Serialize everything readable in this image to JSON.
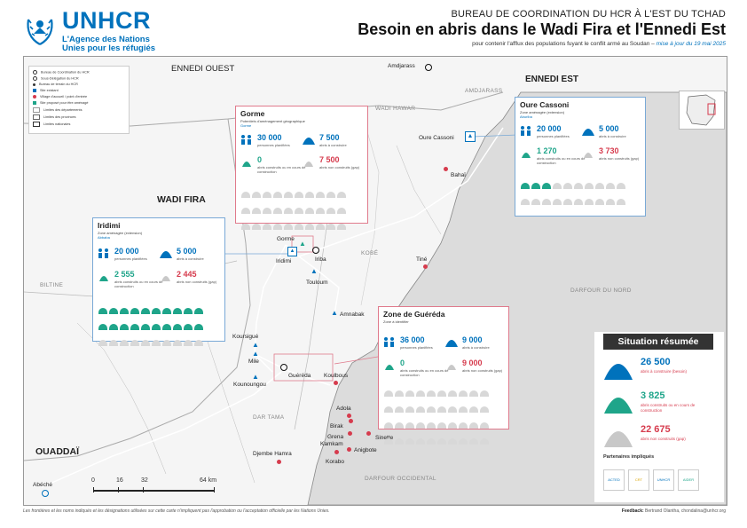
{
  "header": {
    "org_name": "UNHCR",
    "org_sub1": "L'Agence des Nations",
    "org_sub2": "Unies pour les réfugiés",
    "office": "BUREAU DE COORDINATION DU HCR À L'EST DU TCHAD",
    "title": "Besoin en abris dans le Wadi Fira et l'Ennedi Est",
    "subtitle": "pour contenir l'afflux des populations fuyant le conflit armé au Soudan –",
    "update": "mise à jour du 19 mai 2025"
  },
  "legend": {
    "items": [
      "Bureau de Coordination du HCR",
      "Sous-Délégation du HCR",
      "Bureau de terrain du HCR",
      "Site existant",
      "Village d'accueil / point d'entrée",
      "Site proposé pour être aménagé",
      "Limites des départements",
      "Limites des provinces",
      "Limites nationales"
    ]
  },
  "regions": {
    "ennedi_ouest": "ENNEDI OUEST",
    "ennedi_est": "ENNEDI EST",
    "wadi_fira": "WADI FIRA",
    "ouaddai": "OUADDAÏ",
    "darfour_nord": "DARFOUR DU NORD",
    "darfour_occ": "DARFOUR OCCIDENTAL",
    "amdjarass_reg": "AMDJARASS",
    "wadi_hawar": "WADI HAWAR",
    "kobe": "KOBÉ",
    "biltine": "BILTINE",
    "dar_tama": "DAR TAMA"
  },
  "places": {
    "amdjarass": "Amdjarass",
    "oure_cassoni": "Oure Cassoni",
    "bahai": "Bahaï",
    "gorme": "Gorme",
    "iridimi": "Iridimi",
    "iriba": "Iriba",
    "touloum": "Touloum",
    "tine": "Tiné",
    "amnabak": "Amnabak",
    "koursigue": "Koursigué",
    "mile": "Mile",
    "kounoungou": "Kounoungou",
    "guereda": "Guéréda",
    "koulbous": "Koulbous",
    "adola": "Adola",
    "birak": "Birak",
    "grena": "Grena",
    "kamkam": "Kamkam",
    "sinette": "Sinette",
    "anigbote": "Anigbote",
    "korabo": "Korabo",
    "djembe_hamra": "Djembe Hamra",
    "abeche": "Abéché"
  },
  "scale": {
    "t0": "0",
    "t1": "16",
    "t2": "32",
    "t3": "64",
    "unit": "km"
  },
  "boxes": {
    "gorme": {
      "title": "Gorme",
      "sub": "Potentiels d'aménagement géographique",
      "sub2": "Gorme",
      "planned": "30 000",
      "planned_l": "personnes planifiées",
      "tobuild": "7 500",
      "tobuild_l": "abris à construire",
      "done": "0",
      "done_l": "abris construits ou en cours de construction",
      "notbuilt": "7 500",
      "notbuilt_l": "abris non construits (gap)"
    },
    "oure": {
      "title": "Oure Cassoni",
      "sub": "Zone aménagée (extension)",
      "sub2": "Aburiba",
      "planned": "20 000",
      "planned_l": "personnes planifiées",
      "tobuild": "5 000",
      "tobuild_l": "abris à construire",
      "done": "1 270",
      "done_l": "abris construits ou en cours de construction",
      "notbuilt": "3 730",
      "notbuilt_l": "abris non construits (gap)"
    },
    "iridimi": {
      "title": "Iridimi",
      "sub": "Zone aménagée (extension)",
      "sub2": "Abbaba",
      "planned": "20 000",
      "planned_l": "personnes planifiées",
      "tobuild": "5 000",
      "tobuild_l": "abris à construire",
      "done": "2 555",
      "done_l": "abris construits ou en cours de construction",
      "notbuilt": "2 445",
      "notbuilt_l": "abris non construits (gap)"
    },
    "gueredа": {
      "title": "Zone de Guéréda",
      "sub": "Zone à identifier",
      "sub2": "",
      "planned": "36 000",
      "planned_l": "personnes planifiées",
      "tobuild": "9 000",
      "tobuild_l": "abris à construire",
      "done": "0",
      "done_l": "abris construits ou en cours de construction",
      "notbuilt": "9 000",
      "notbuilt_l": "abris non construits (gap)"
    }
  },
  "summary": {
    "title": "Situation résumée",
    "total": "26 500",
    "total_l": "abris à construire (besoin)",
    "built": "3 825",
    "built_l": "abris construits ou en cours de construction",
    "gap": "22 675",
    "gap_l": "abris non construits (gap)",
    "partners": "Partenaires impliqués",
    "partner_names": [
      "ACTED",
      "CRT",
      "UNHCR",
      "AIDER"
    ]
  },
  "footer": {
    "disclaimer": "Les frontières et les noms indiqués et les désignations utilisées sur cette carte n'impliquent pas l'approbation ou l'acceptation officielle par les Nations Unies.",
    "feedback_label": "Feedback:",
    "feedback": "Bertrand Olantha, chondalina@unhcr.org"
  },
  "colors": {
    "blue": "#0072bc",
    "green": "#1fa58a",
    "red": "#d63b4d",
    "grey": "#c8c8c8"
  }
}
